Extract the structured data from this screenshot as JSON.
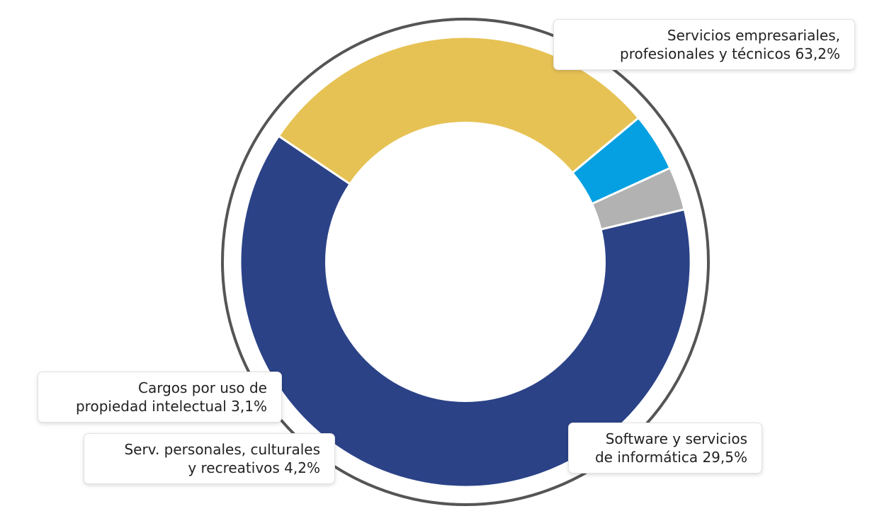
{
  "chart_data": {
    "type": "pie",
    "variant": "donut",
    "title": "",
    "start_angle_deg": 76.5,
    "direction": "clockwise",
    "slices": [
      {
        "label_line1": "Servicios empresariales,",
        "label_line2": "profesionales y técnicos 63,2%",
        "value": 63.2,
        "color": "#2b4287"
      },
      {
        "label_line1": "Software y servicios",
        "label_line2": "de informática 29,5%",
        "value": 29.5,
        "color": "#e6c254"
      },
      {
        "label_line1": "Serv. personales, culturales",
        "label_line2": "y recreativos 4,2%",
        "value": 4.2,
        "color": "#05a0e1"
      },
      {
        "label_line1": "Cargos por uso de",
        "label_line2": "propiedad intelectual 3,1%",
        "value": 3.1,
        "color": "#b2b2b2"
      }
    ],
    "legend": "none",
    "outer_ring_color": "#555555"
  }
}
